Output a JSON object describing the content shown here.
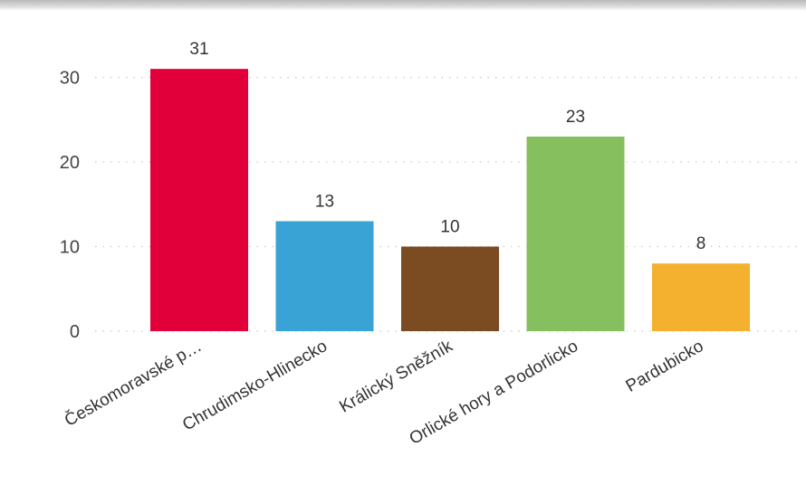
{
  "chart_data": {
    "type": "bar",
    "categories": [
      "Českomoravské p…",
      "Chrudimsko-Hlinecko",
      "Králický Sněžník",
      "Orlické hory a Podorlicko",
      "Pardubicko"
    ],
    "values": [
      31,
      13,
      10,
      23,
      8
    ],
    "data_labels": [
      "31",
      "13",
      "10",
      "23",
      "8"
    ],
    "colors": [
      "#e2003a",
      "#3aa3d6",
      "#7b4b22",
      "#86bf5e",
      "#f4b130"
    ],
    "ylim": [
      0,
      32
    ],
    "yticks": [
      0,
      10,
      20,
      30
    ],
    "ytick_labels": [
      "0",
      "10",
      "20",
      "30"
    ],
    "grid": true,
    "legend": "none"
  }
}
